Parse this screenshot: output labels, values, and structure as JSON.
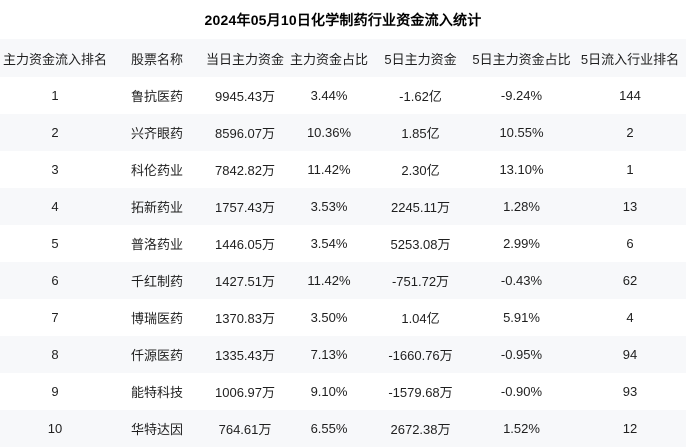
{
  "chart_data": {
    "type": "table",
    "title": "2024年05月10日化学制药行业资金流入统计",
    "columns": [
      "主力资金流入排名",
      "股票名称",
      "当日主力资金",
      "主力资金占比",
      "5日主力资金",
      "5日主力资金占比",
      "5日流入行业排名"
    ],
    "column_keys": [
      "rank",
      "stock-name",
      "today-main-fund",
      "main-fund-ratio",
      "five-day-main-fund",
      "five-day-main-fund-ratio",
      "five-day-industry-rank"
    ],
    "rows": [
      [
        "1",
        "鲁抗医药",
        "9945.43万",
        "3.44%",
        "-1.62亿",
        "-9.24%",
        "144"
      ],
      [
        "2",
        "兴齐眼药",
        "8596.07万",
        "10.36%",
        "1.85亿",
        "10.55%",
        "2"
      ],
      [
        "3",
        "科伦药业",
        "7842.82万",
        "11.42%",
        "2.30亿",
        "13.10%",
        "1"
      ],
      [
        "4",
        "拓新药业",
        "1757.43万",
        "3.53%",
        "2245.11万",
        "1.28%",
        "13"
      ],
      [
        "5",
        "普洛药业",
        "1446.05万",
        "3.54%",
        "5253.08万",
        "2.99%",
        "6"
      ],
      [
        "6",
        "千红制药",
        "1427.51万",
        "11.42%",
        "-751.72万",
        "-0.43%",
        "62"
      ],
      [
        "7",
        "博瑞医药",
        "1370.83万",
        "3.50%",
        "1.04亿",
        "5.91%",
        "4"
      ],
      [
        "8",
        "仟源医药",
        "1335.43万",
        "7.13%",
        "-1660.76万",
        "-0.95%",
        "94"
      ],
      [
        "9",
        "能特科技",
        "1006.97万",
        "9.10%",
        "-1579.68万",
        "-0.90%",
        "93"
      ],
      [
        "10",
        "华特达因",
        "764.61万",
        "6.55%",
        "2672.38万",
        "1.52%",
        "12"
      ]
    ],
    "layout_hints": {
      "stripe_color": "#f7f8fa",
      "text_color": "#1f1f1f",
      "grid": "off",
      "alignment": "center"
    }
  }
}
